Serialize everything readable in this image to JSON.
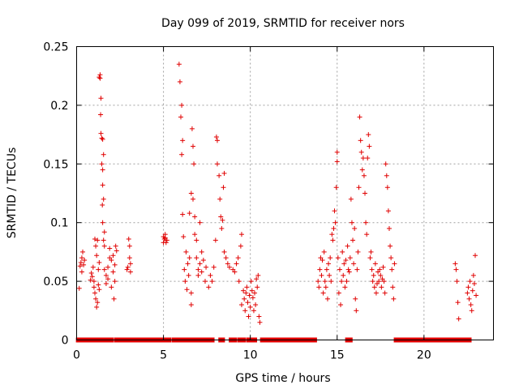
{
  "chart_data": {
    "type": "scatter",
    "title": "Day 099 of 2019, SRMTID for receiver nors",
    "xlabel": "GPS time / hours",
    "ylabel": "SRMTID / TECUs",
    "xlim": [
      0,
      24
    ],
    "ylim": [
      0,
      0.25
    ],
    "xticks": [
      0,
      5,
      10,
      15,
      20
    ],
    "xtick_labels": [
      "0",
      "5",
      "10",
      "15",
      "20"
    ],
    "yticks": [
      0,
      0.05,
      0.1,
      0.15,
      0.2,
      0.25
    ],
    "ytick_labels": [
      "0",
      "0.05",
      "0.1",
      "0.15",
      "0.2",
      "0.25"
    ],
    "grid": true,
    "marker": "+",
    "color": "#e00000",
    "series": [
      {
        "name": "SRMTID",
        "points": [
          [
            0.15,
            0.044
          ],
          [
            0.2,
            0.063
          ],
          [
            0.25,
            0.066
          ],
          [
            0.3,
            0.07
          ],
          [
            0.3,
            0.058
          ],
          [
            0.35,
            0.075
          ],
          [
            0.4,
            0.064
          ],
          [
            0.45,
            0.068
          ],
          [
            0.8,
            0.051
          ],
          [
            0.85,
            0.057
          ],
          [
            0.9,
            0.054
          ],
          [
            0.95,
            0.062
          ],
          [
            1.0,
            0.05
          ],
          [
            1.0,
            0.045
          ],
          [
            1.05,
            0.04
          ],
          [
            1.05,
            0.086
          ],
          [
            1.1,
            0.035
          ],
          [
            1.1,
            0.08
          ],
          [
            1.15,
            0.028
          ],
          [
            1.15,
            0.072
          ],
          [
            1.2,
            0.032
          ],
          [
            1.2,
            0.085
          ],
          [
            1.25,
            0.047
          ],
          [
            1.25,
            0.06
          ],
          [
            1.3,
            0.043
          ],
          [
            1.3,
            0.066
          ],
          [
            1.3,
            0.224
          ],
          [
            1.35,
            0.226
          ],
          [
            1.35,
            0.223
          ],
          [
            1.4,
            0.206
          ],
          [
            1.38,
            0.192
          ],
          [
            1.4,
            0.176
          ],
          [
            1.45,
            0.172
          ],
          [
            1.5,
            0.171
          ],
          [
            1.45,
            0.15
          ],
          [
            1.5,
            0.145
          ],
          [
            1.55,
            0.158
          ],
          [
            1.5,
            0.132
          ],
          [
            1.55,
            0.12
          ],
          [
            1.48,
            0.115
          ],
          [
            1.5,
            0.1
          ],
          [
            1.6,
            0.092
          ],
          [
            1.55,
            0.085
          ],
          [
            1.6,
            0.08
          ],
          [
            1.6,
            0.06
          ],
          [
            1.7,
            0.055
          ],
          [
            1.7,
            0.048
          ],
          [
            1.8,
            0.052
          ],
          [
            1.8,
            0.062
          ],
          [
            1.9,
            0.07
          ],
          [
            1.9,
            0.078
          ],
          [
            2.0,
            0.068
          ],
          [
            2.0,
            0.045
          ],
          [
            2.1,
            0.058
          ],
          [
            2.1,
            0.072
          ],
          [
            2.15,
            0.035
          ],
          [
            2.2,
            0.05
          ],
          [
            2.2,
            0.064
          ],
          [
            2.25,
            0.08
          ],
          [
            2.3,
            0.076
          ],
          [
            2.9,
            0.06
          ],
          [
            2.95,
            0.062
          ],
          [
            3.0,
            0.086
          ],
          [
            3.05,
            0.07
          ],
          [
            3.05,
            0.08
          ],
          [
            3.1,
            0.058
          ],
          [
            3.1,
            0.065
          ],
          [
            5.0,
            0.083
          ],
          [
            5.0,
            0.088
          ],
          [
            5.05,
            0.086
          ],
          [
            5.1,
            0.09
          ],
          [
            5.1,
            0.087
          ],
          [
            5.15,
            0.083
          ],
          [
            5.2,
            0.085
          ],
          [
            5.9,
            0.235
          ],
          [
            5.95,
            0.22
          ],
          [
            6.05,
            0.2
          ],
          [
            6.0,
            0.19
          ],
          [
            6.1,
            0.17
          ],
          [
            6.05,
            0.158
          ],
          [
            6.1,
            0.107
          ],
          [
            6.15,
            0.088
          ],
          [
            6.2,
            0.06
          ],
          [
            6.25,
            0.05
          ],
          [
            6.3,
            0.075
          ],
          [
            6.35,
            0.043
          ],
          [
            6.4,
            0.065
          ],
          [
            6.45,
            0.055
          ],
          [
            6.5,
            0.108
          ],
          [
            6.5,
            0.07
          ],
          [
            6.6,
            0.04
          ],
          [
            6.6,
            0.03
          ],
          [
            6.6,
            0.125
          ],
          [
            6.65,
            0.18
          ],
          [
            6.7,
            0.165
          ],
          [
            6.7,
            0.12
          ],
          [
            6.75,
            0.15
          ],
          [
            6.8,
            0.105
          ],
          [
            6.8,
            0.09
          ],
          [
            6.9,
            0.085
          ],
          [
            6.9,
            0.07
          ],
          [
            7.0,
            0.06
          ],
          [
            7.0,
            0.055
          ],
          [
            7.1,
            0.065
          ],
          [
            7.1,
            0.1
          ],
          [
            7.2,
            0.075
          ],
          [
            7.2,
            0.058
          ],
          [
            7.3,
            0.068
          ],
          [
            7.4,
            0.05
          ],
          [
            7.45,
            0.062
          ],
          [
            7.6,
            0.045
          ],
          [
            7.7,
            0.055
          ],
          [
            7.8,
            0.05
          ],
          [
            7.9,
            0.062
          ],
          [
            8.0,
            0.085
          ],
          [
            8.05,
            0.173
          ],
          [
            8.1,
            0.17
          ],
          [
            8.1,
            0.15
          ],
          [
            8.2,
            0.14
          ],
          [
            8.25,
            0.12
          ],
          [
            8.3,
            0.105
          ],
          [
            8.35,
            0.095
          ],
          [
            8.4,
            0.102
          ],
          [
            8.45,
            0.13
          ],
          [
            8.5,
            0.142
          ],
          [
            8.5,
            0.075
          ],
          [
            8.6,
            0.07
          ],
          [
            8.7,
            0.065
          ],
          [
            8.8,
            0.062
          ],
          [
            9.0,
            0.06
          ],
          [
            9.1,
            0.058
          ],
          [
            9.2,
            0.065
          ],
          [
            9.3,
            0.07
          ],
          [
            9.35,
            0.05
          ],
          [
            9.45,
            0.08
          ],
          [
            9.5,
            0.09
          ],
          [
            9.5,
            0.03
          ],
          [
            9.6,
            0.042
          ],
          [
            9.65,
            0.035
          ],
          [
            9.7,
            0.025
          ],
          [
            9.75,
            0.04
          ],
          [
            9.8,
            0.045
          ],
          [
            9.85,
            0.032
          ],
          [
            9.9,
            0.02
          ],
          [
            9.95,
            0.038
          ],
          [
            10.0,
            0.028
          ],
          [
            10.05,
            0.05
          ],
          [
            10.1,
            0.042
          ],
          [
            10.15,
            0.036
          ],
          [
            10.2,
            0.025
          ],
          [
            10.25,
            0.04
          ],
          [
            10.3,
            0.03
          ],
          [
            10.35,
            0.052
          ],
          [
            10.4,
            0.045
          ],
          [
            10.45,
            0.055
          ],
          [
            10.5,
            0.02
          ],
          [
            10.55,
            0.015
          ],
          [
            13.9,
            0.05
          ],
          [
            13.95,
            0.045
          ],
          [
            14.0,
            0.06
          ],
          [
            14.05,
            0.07
          ],
          [
            14.1,
            0.055
          ],
          [
            14.15,
            0.068
          ],
          [
            14.2,
            0.04
          ],
          [
            14.25,
            0.075
          ],
          [
            14.3,
            0.05
          ],
          [
            14.35,
            0.045
          ],
          [
            14.4,
            0.06
          ],
          [
            14.45,
            0.035
          ],
          [
            14.5,
            0.065
          ],
          [
            14.55,
            0.055
          ],
          [
            14.6,
            0.07
          ],
          [
            14.65,
            0.05
          ],
          [
            14.7,
            0.09
          ],
          [
            14.75,
            0.085
          ],
          [
            14.8,
            0.095
          ],
          [
            14.85,
            0.11
          ],
          [
            14.9,
            0.1
          ],
          [
            14.95,
            0.13
          ],
          [
            15.0,
            0.152
          ],
          [
            15.0,
            0.16
          ],
          [
            15.05,
            0.07
          ],
          [
            15.1,
            0.04
          ],
          [
            15.15,
            0.06
          ],
          [
            15.2,
            0.03
          ],
          [
            15.25,
            0.05
          ],
          [
            15.3,
            0.075
          ],
          [
            15.35,
            0.055
          ],
          [
            15.4,
            0.065
          ],
          [
            15.45,
            0.045
          ],
          [
            15.5,
            0.068
          ],
          [
            15.55,
            0.05
          ],
          [
            15.6,
            0.08
          ],
          [
            15.65,
            0.06
          ],
          [
            15.7,
            0.058
          ],
          [
            15.75,
            0.07
          ],
          [
            15.8,
            0.12
          ],
          [
            15.85,
            0.1
          ],
          [
            15.9,
            0.085
          ],
          [
            15.95,
            0.065
          ],
          [
            16.0,
            0.095
          ],
          [
            16.05,
            0.035
          ],
          [
            16.1,
            0.025
          ],
          [
            16.15,
            0.06
          ],
          [
            16.2,
            0.075
          ],
          [
            16.25,
            0.13
          ],
          [
            16.3,
            0.19
          ],
          [
            16.35,
            0.17
          ],
          [
            16.4,
            0.16
          ],
          [
            16.45,
            0.145
          ],
          [
            16.5,
            0.155
          ],
          [
            16.55,
            0.14
          ],
          [
            16.6,
            0.125
          ],
          [
            16.65,
            0.1
          ],
          [
            16.7,
            0.09
          ],
          [
            16.75,
            0.155
          ],
          [
            16.8,
            0.175
          ],
          [
            16.85,
            0.165
          ],
          [
            16.9,
            0.07
          ],
          [
            16.95,
            0.075
          ],
          [
            17.0,
            0.06
          ],
          [
            17.05,
            0.05
          ],
          [
            17.1,
            0.055
          ],
          [
            17.15,
            0.045
          ],
          [
            17.2,
            0.065
          ],
          [
            17.25,
            0.04
          ],
          [
            17.3,
            0.048
          ],
          [
            17.35,
            0.058
          ],
          [
            17.4,
            0.05
          ],
          [
            17.45,
            0.06
          ],
          [
            17.5,
            0.055
          ],
          [
            17.55,
            0.045
          ],
          [
            17.6,
            0.052
          ],
          [
            17.65,
            0.062
          ],
          [
            17.7,
            0.05
          ],
          [
            17.75,
            0.04
          ],
          [
            17.8,
            0.15
          ],
          [
            17.85,
            0.14
          ],
          [
            17.9,
            0.13
          ],
          [
            17.95,
            0.11
          ],
          [
            18.0,
            0.095
          ],
          [
            18.05,
            0.08
          ],
          [
            18.1,
            0.07
          ],
          [
            18.15,
            0.06
          ],
          [
            18.2,
            0.045
          ],
          [
            18.25,
            0.035
          ],
          [
            18.3,
            0.065
          ],
          [
            21.8,
            0.065
          ],
          [
            21.85,
            0.06
          ],
          [
            21.9,
            0.05
          ],
          [
            21.95,
            0.032
          ],
          [
            22.0,
            0.018
          ],
          [
            22.5,
            0.04
          ],
          [
            22.55,
            0.045
          ],
          [
            22.6,
            0.035
          ],
          [
            22.65,
            0.05
          ],
          [
            22.7,
            0.03
          ],
          [
            22.75,
            0.025
          ],
          [
            22.8,
            0.042
          ],
          [
            22.85,
            0.055
          ],
          [
            22.9,
            0.048
          ],
          [
            22.95,
            0.072
          ],
          [
            23.0,
            0.038
          ]
        ]
      }
    ],
    "zero_segments": [
      [
        0.1,
        0.5
      ],
      [
        0.6,
        1.05
      ],
      [
        1.2,
        1.25
      ],
      [
        1.4,
        1.65
      ],
      [
        1.9,
        2.0
      ],
      [
        2.3,
        4.6
      ],
      [
        4.7,
        5.3
      ],
      [
        5.6,
        5.8
      ],
      [
        6.0,
        6.4
      ],
      [
        6.6,
        6.9
      ],
      [
        7.1,
        7.3
      ],
      [
        7.55,
        7.8
      ],
      [
        8.3,
        8.4
      ],
      [
        8.9,
        9.1
      ],
      [
        9.4,
        9.6
      ],
      [
        9.9,
        10.0
      ],
      [
        10.1,
        10.25
      ],
      [
        10.7,
        13.7
      ],
      [
        15.6,
        15.75
      ],
      [
        18.4,
        21.8
      ],
      [
        22.0,
        22.6
      ]
    ]
  }
}
